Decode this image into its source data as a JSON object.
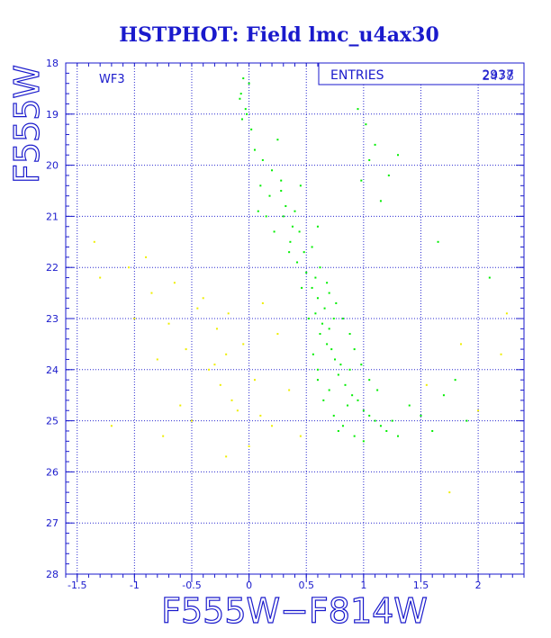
{
  "chart_data": {
    "type": "scatter",
    "title": "HSTPHOT: Field lmc_u4ax30",
    "xlabel": "F555W−F814W",
    "ylabel": "F555W",
    "xlim": [
      -1.6,
      2.4
    ],
    "ylim": [
      28,
      18
    ],
    "y_inverted": true,
    "grid": true,
    "x_ticks": [
      -1.5,
      -1,
      -0.5,
      0,
      0.5,
      1,
      1.5,
      2
    ],
    "x_tick_labels": [
      "-1.5",
      "-1",
      "-0.5",
      "0",
      "0.5",
      "1",
      "1.5",
      "2"
    ],
    "x_minor_step": 0.1,
    "y_ticks": [
      18,
      19,
      20,
      21,
      22,
      23,
      24,
      25,
      26,
      27,
      28
    ],
    "y_tick_labels": [
      "18",
      "19",
      "20",
      "21",
      "22",
      "23",
      "24",
      "25",
      "26",
      "27",
      "28"
    ],
    "y_minor_step": 0.2,
    "chip_label": "WF3",
    "stats_box": {
      "label": "ENTRIES",
      "value_a": "2937",
      "value_b": "2478"
    },
    "series": [
      {
        "color": "#00ee00",
        "values": [
          [
            -0.05,
            18.3
          ],
          [
            -0.07,
            18.6
          ],
          [
            -0.03,
            18.9
          ],
          [
            -0.06,
            19.1
          ],
          [
            0.02,
            19.3
          ],
          [
            -0.02,
            19.0
          ],
          [
            0.0,
            18.4
          ],
          [
            -0.08,
            18.7
          ],
          [
            0.95,
            18.9
          ],
          [
            1.02,
            19.2
          ],
          [
            1.1,
            19.6
          ],
          [
            1.05,
            19.9
          ],
          [
            0.98,
            20.3
          ],
          [
            1.15,
            20.7
          ],
          [
            1.3,
            19.8
          ],
          [
            1.22,
            20.2
          ],
          [
            0.05,
            19.7
          ],
          [
            0.12,
            19.9
          ],
          [
            0.2,
            20.1
          ],
          [
            0.28,
            20.3
          ],
          [
            0.18,
            20.6
          ],
          [
            0.32,
            20.8
          ],
          [
            0.1,
            20.4
          ],
          [
            0.25,
            19.5
          ],
          [
            0.3,
            21.0
          ],
          [
            0.38,
            21.2
          ],
          [
            0.36,
            21.5
          ],
          [
            0.44,
            21.3
          ],
          [
            0.48,
            21.7
          ],
          [
            0.42,
            21.9
          ],
          [
            0.55,
            21.6
          ],
          [
            0.5,
            22.1
          ],
          [
            0.55,
            22.4
          ],
          [
            0.6,
            22.6
          ],
          [
            0.58,
            22.9
          ],
          [
            0.64,
            23.1
          ],
          [
            0.62,
            23.3
          ],
          [
            0.68,
            23.5
          ],
          [
            0.7,
            23.2
          ],
          [
            0.66,
            22.8
          ],
          [
            0.72,
            23.6
          ],
          [
            0.75,
            23.8
          ],
          [
            0.8,
            23.9
          ],
          [
            0.78,
            24.1
          ],
          [
            0.84,
            24.3
          ],
          [
            0.88,
            24.0
          ],
          [
            0.9,
            24.5
          ],
          [
            0.86,
            24.7
          ],
          [
            0.95,
            24.6
          ],
          [
            1.0,
            24.8
          ],
          [
            1.05,
            24.9
          ],
          [
            1.1,
            25.0
          ],
          [
            1.15,
            25.1
          ],
          [
            1.2,
            25.2
          ],
          [
            1.25,
            25.0
          ],
          [
            1.3,
            25.3
          ],
          [
            0.7,
            24.4
          ],
          [
            0.74,
            24.9
          ],
          [
            0.6,
            24.2
          ],
          [
            0.65,
            24.6
          ],
          [
            0.82,
            25.1
          ],
          [
            0.92,
            25.3
          ],
          [
            1.0,
            25.4
          ],
          [
            0.78,
            25.2
          ],
          [
            0.56,
            23.7
          ],
          [
            0.6,
            24.0
          ],
          [
            0.52,
            23.0
          ],
          [
            0.58,
            22.2
          ],
          [
            0.46,
            22.4
          ],
          [
            0.62,
            22.0
          ],
          [
            0.7,
            22.5
          ],
          [
            0.74,
            23.0
          ],
          [
            0.15,
            21.0
          ],
          [
            0.22,
            21.3
          ],
          [
            0.35,
            21.7
          ],
          [
            0.28,
            20.5
          ],
          [
            0.4,
            20.9
          ],
          [
            0.08,
            20.9
          ],
          [
            0.45,
            20.4
          ],
          [
            0.6,
            21.2
          ],
          [
            1.4,
            24.7
          ],
          [
            1.5,
            24.9
          ],
          [
            1.6,
            25.2
          ],
          [
            1.7,
            24.5
          ],
          [
            1.8,
            24.2
          ],
          [
            1.9,
            25.0
          ],
          [
            2.1,
            22.2
          ],
          [
            1.65,
            21.5
          ],
          [
            0.98,
            23.9
          ],
          [
            1.05,
            24.2
          ],
          [
            1.12,
            24.4
          ],
          [
            0.92,
            23.6
          ],
          [
            0.88,
            23.3
          ],
          [
            0.82,
            23.0
          ],
          [
            0.76,
            22.7
          ],
          [
            0.68,
            22.3
          ]
        ]
      },
      {
        "color": "#eeee00",
        "values": [
          [
            -1.35,
            21.5
          ],
          [
            -1.3,
            22.2
          ],
          [
            -1.05,
            22.0
          ],
          [
            -0.9,
            21.8
          ],
          [
            -0.85,
            22.5
          ],
          [
            -0.7,
            23.1
          ],
          [
            -0.55,
            23.6
          ],
          [
            -0.45,
            22.8
          ],
          [
            -0.35,
            24.0
          ],
          [
            -0.3,
            23.9
          ],
          [
            -0.25,
            24.3
          ],
          [
            -0.2,
            23.7
          ],
          [
            -0.15,
            24.6
          ],
          [
            -0.1,
            24.8
          ],
          [
            -0.05,
            23.5
          ],
          [
            0.05,
            24.2
          ],
          [
            0.1,
            24.9
          ],
          [
            0.2,
            25.1
          ],
          [
            0.25,
            23.3
          ],
          [
            0.35,
            24.4
          ],
          [
            0.45,
            25.3
          ],
          [
            -0.6,
            24.7
          ],
          [
            -0.5,
            25.0
          ],
          [
            -0.75,
            25.3
          ],
          [
            -1.2,
            25.1
          ],
          [
            -1.0,
            23.0
          ],
          [
            -0.8,
            23.8
          ],
          [
            -0.65,
            22.3
          ],
          [
            -0.4,
            22.6
          ],
          [
            -0.28,
            23.2
          ],
          [
            -0.18,
            22.9
          ],
          [
            0.12,
            22.7
          ],
          [
            1.55,
            24.3
          ],
          [
            1.75,
            26.4
          ],
          [
            2.0,
            24.8
          ],
          [
            2.2,
            23.7
          ],
          [
            2.25,
            22.9
          ],
          [
            1.85,
            23.5
          ],
          [
            -0.2,
            25.7
          ],
          [
            0.0,
            25.5
          ]
        ]
      }
    ]
  }
}
